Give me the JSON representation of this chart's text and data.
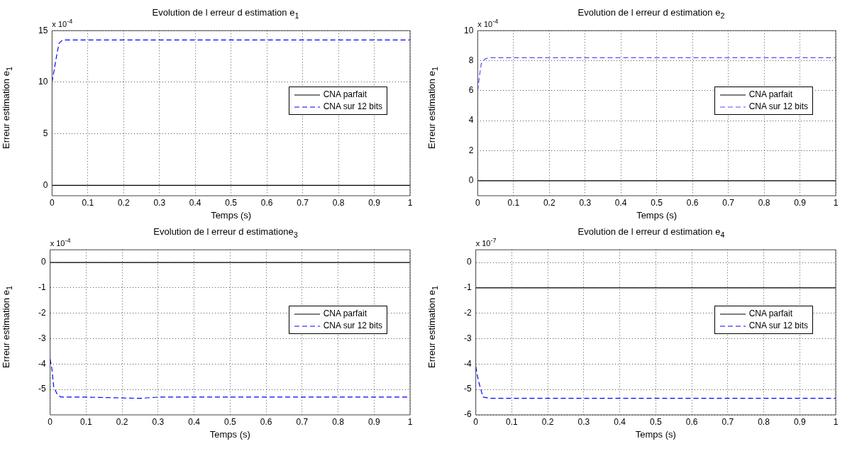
{
  "chart_data": [
    {
      "type": "line",
      "title": "Evolution de l erreur d estimation e$_{1}$",
      "xlabel": "Temps (s)",
      "ylabel": "Erreur estimation e$_{1}$",
      "annotations": [
        "x 10$^{-4}$"
      ],
      "xlim": [
        0,
        1
      ],
      "xticks": [
        0,
        0.1,
        0.2,
        0.3,
        0.4,
        0.5,
        0.6,
        0.7,
        0.8,
        0.9,
        1
      ],
      "ylim": [
        -1,
        15
      ],
      "yticks": [
        0,
        5,
        10,
        15
      ],
      "grid": true,
      "legend": "right",
      "marker": "none",
      "series": [
        {
          "name": "CNA parfait",
          "color": "#000000",
          "line_style": "solid",
          "x": [
            0,
            1
          ],
          "values": [
            0,
            0
          ]
        },
        {
          "name": "CNA sur 12 bits",
          "color": "#0000ff",
          "line_style": "dashed",
          "x": [
            0,
            0.005,
            0.01,
            0.015,
            0.02,
            0.03,
            0.05,
            1
          ],
          "values": [
            10,
            11,
            12,
            13,
            13.8,
            14.1,
            14.1,
            14.1
          ]
        }
      ]
    },
    {
      "type": "line",
      "title": "Evolution de l erreur d estimation e$_{2}$",
      "xlabel": "Temps (s)",
      "ylabel": "Erreur estimation e$_{1}$",
      "annotations": [
        "x 10$^{-4}$"
      ],
      "xlim": [
        0,
        1
      ],
      "xticks": [
        0,
        0.1,
        0.2,
        0.3,
        0.4,
        0.5,
        0.6,
        0.7,
        0.8,
        0.9,
        1
      ],
      "ylim": [
        -1,
        10
      ],
      "yticks": [
        0,
        2,
        4,
        6,
        8,
        10
      ],
      "grid": true,
      "legend": "right",
      "marker": "none",
      "series": [
        {
          "name": "CNA parfait",
          "color": "#000000",
          "line_style": "solid",
          "x": [
            0,
            1
          ],
          "values": [
            0,
            0
          ]
        },
        {
          "name": "CNA sur 12 bits",
          "color": "#4d4dff",
          "line_style": "dashed",
          "x": [
            0,
            0.005,
            0.01,
            0.02,
            0.03,
            1
          ],
          "values": [
            6,
            7,
            7.8,
            8.1,
            8.2,
            8.2
          ]
        }
      ]
    },
    {
      "type": "line",
      "title": "Evolution de l erreur d estimatione$_{3}$",
      "xlabel": "Temps (s)",
      "ylabel": "Erreur estimation e$_{1}$",
      "annotations": [
        "x 10$^{-4}$"
      ],
      "xlim": [
        0,
        1
      ],
      "xticks": [
        0,
        0.1,
        0.2,
        0.3,
        0.4,
        0.5,
        0.6,
        0.7,
        0.8,
        0.9,
        1
      ],
      "ylim": [
        -6,
        0.5
      ],
      "yticks": [
        -5,
        -4,
        -3,
        -2,
        -1,
        0
      ],
      "grid": true,
      "legend": "right",
      "marker": "none",
      "series": [
        {
          "name": "CNA parfait",
          "color": "#000000",
          "line_style": "solid",
          "x": [
            0,
            1
          ],
          "values": [
            0,
            0
          ]
        },
        {
          "name": "CNA sur 12 bits",
          "color": "#0000ff",
          "line_style": "dashed",
          "x": [
            0,
            0.005,
            0.01,
            0.02,
            0.03,
            0.1,
            0.25,
            0.3,
            1
          ],
          "values": [
            -3.8,
            -4.2,
            -4.9,
            -5.2,
            -5.3,
            -5.3,
            -5.35,
            -5.3,
            -5.3
          ]
        }
      ]
    },
    {
      "type": "line",
      "title": "Evolution de l erreur d estimation e$_{4}$",
      "xlabel": "Temps (s)",
      "ylabel": "Erreur estimation e$_{1}$",
      "annotations": [
        "x 10$^{-7}$"
      ],
      "xlim": [
        0,
        1
      ],
      "xticks": [
        0,
        0.1,
        0.2,
        0.3,
        0.4,
        0.5,
        0.6,
        0.7,
        0.8,
        0.9,
        1
      ],
      "ylim": [
        -6,
        0.5
      ],
      "yticks": [
        -6,
        -5,
        -4,
        -3,
        -2,
        -1,
        0
      ],
      "grid": true,
      "legend": "right",
      "marker": "none",
      "series": [
        {
          "name": "CNA parfait",
          "color": "#000000",
          "line_style": "solid",
          "x": [
            0,
            1
          ],
          "values": [
            -1,
            -1
          ]
        },
        {
          "name": "CNA sur 12 bits",
          "color": "#0000ff",
          "line_style": "dashed",
          "x": [
            0,
            0.005,
            0.01,
            0.02,
            0.04,
            1
          ],
          "values": [
            -4.1,
            -4.5,
            -4.8,
            -5.3,
            -5.35,
            -5.35
          ]
        }
      ]
    }
  ]
}
